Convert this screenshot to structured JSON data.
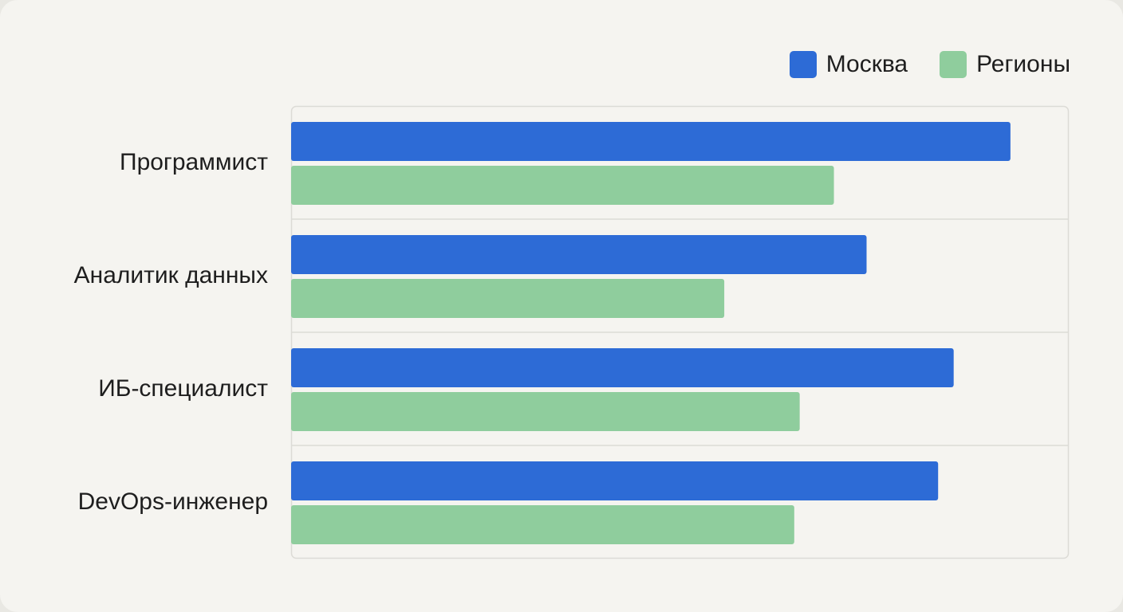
{
  "colors": {
    "moscow": "#2d6bd6",
    "regions": "#8fcd9d",
    "grid": "#dcdbd6",
    "background": "#f5f4f0"
  },
  "chart_data": {
    "type": "bar",
    "orientation": "horizontal",
    "categories": [
      "Программист",
      "Аналитик данных",
      "ИБ-специалист",
      "DevOps-инженер"
    ],
    "series": [
      {
        "name": "Москва",
        "values": [
          92.5,
          74,
          85.2,
          83.2
        ]
      },
      {
        "name": "Регионы",
        "values": [
          69.8,
          55.7,
          65.4,
          64.7
        ]
      }
    ],
    "xlim": [
      0,
      100
    ],
    "title": "",
    "xlabel": "",
    "ylabel": "",
    "legend": "top-right",
    "grid": true
  }
}
